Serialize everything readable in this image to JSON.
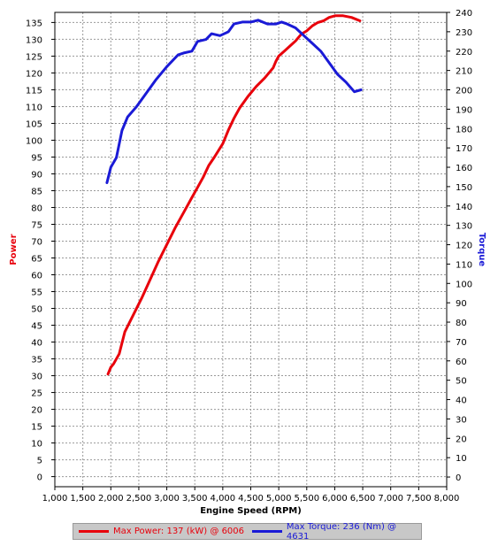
{
  "chart_data": {
    "type": "line",
    "xlabel": "Engine Speed (RPM)",
    "y_left_label": "Power",
    "y_right_label": "Torque",
    "xlim": [
      1000,
      8000
    ],
    "x_ticks": [
      "1,000",
      "1,500",
      "2,000",
      "2,500",
      "3,000",
      "3,500",
      "4,000",
      "4,500",
      "5,000",
      "5,500",
      "6,000",
      "6,500",
      "7,000",
      "7,500",
      "8,000"
    ],
    "ylim_left": [
      -3,
      138
    ],
    "ylim_right": [
      -5,
      240
    ],
    "y_left_ticks": [
      0,
      5,
      10,
      15,
      20,
      25,
      30,
      35,
      40,
      45,
      50,
      55,
      60,
      65,
      70,
      75,
      80,
      85,
      90,
      95,
      100,
      105,
      110,
      115,
      120,
      125,
      130,
      135
    ],
    "y_right_ticks": [
      0,
      10,
      20,
      30,
      40,
      50,
      60,
      70,
      80,
      90,
      100,
      110,
      120,
      130,
      140,
      150,
      160,
      170,
      180,
      190,
      200,
      210,
      220,
      230,
      240
    ],
    "grid": true,
    "series": [
      {
        "name": "Power",
        "axis": "left",
        "color": "#e8000b",
        "x": [
          1950,
          2000,
          2050,
          2150,
          2250,
          2400,
          2550,
          2700,
          2850,
          3000,
          3150,
          3300,
          3450,
          3550,
          3650,
          3750,
          3850,
          4000,
          4100,
          4200,
          4300,
          4450,
          4600,
          4750,
          4900,
          4950,
          5000,
          5100,
          5200,
          5300,
          5400,
          5500,
          5600,
          5700,
          5800,
          5900,
          6006,
          6150,
          6300,
          6450
        ],
        "values": [
          30.5,
          32.5,
          33.5,
          36.5,
          43,
          48,
          53,
          58.5,
          64,
          69,
          74,
          78.5,
          83,
          86,
          89,
          92.5,
          95,
          99,
          103,
          106.5,
          109.5,
          113,
          116,
          118.5,
          121.5,
          123.5,
          125,
          126.5,
          128,
          129.5,
          131.5,
          132.5,
          134,
          135,
          135.5,
          136.5,
          137,
          137,
          136.5,
          135.5
        ]
      },
      {
        "name": "Torque",
        "axis": "right",
        "color": "#1a1ad6",
        "x": [
          1930,
          2000,
          2100,
          2200,
          2300,
          2450,
          2600,
          2800,
          3000,
          3200,
          3300,
          3450,
          3550,
          3700,
          3800,
          3950,
          4100,
          4200,
          4350,
          4500,
          4631,
          4800,
          4950,
          5050,
          5150,
          5300,
          5450,
          5600,
          5750,
          5900,
          6050,
          6200,
          6350,
          6470
        ],
        "values": [
          152,
          160,
          165,
          179,
          186,
          191,
          197,
          205,
          212,
          218,
          219,
          220,
          225,
          226,
          229,
          228,
          230,
          234,
          235,
          235,
          236,
          234,
          234,
          235,
          234,
          232,
          228,
          224,
          220,
          214,
          208,
          204,
          199,
          200
        ]
      }
    ],
    "legend": {
      "position": "bottom",
      "entries": [
        "Max Power: 137 (kW) @ 6006",
        "Max Torque: 236 (Nm) @ 4631"
      ]
    }
  }
}
